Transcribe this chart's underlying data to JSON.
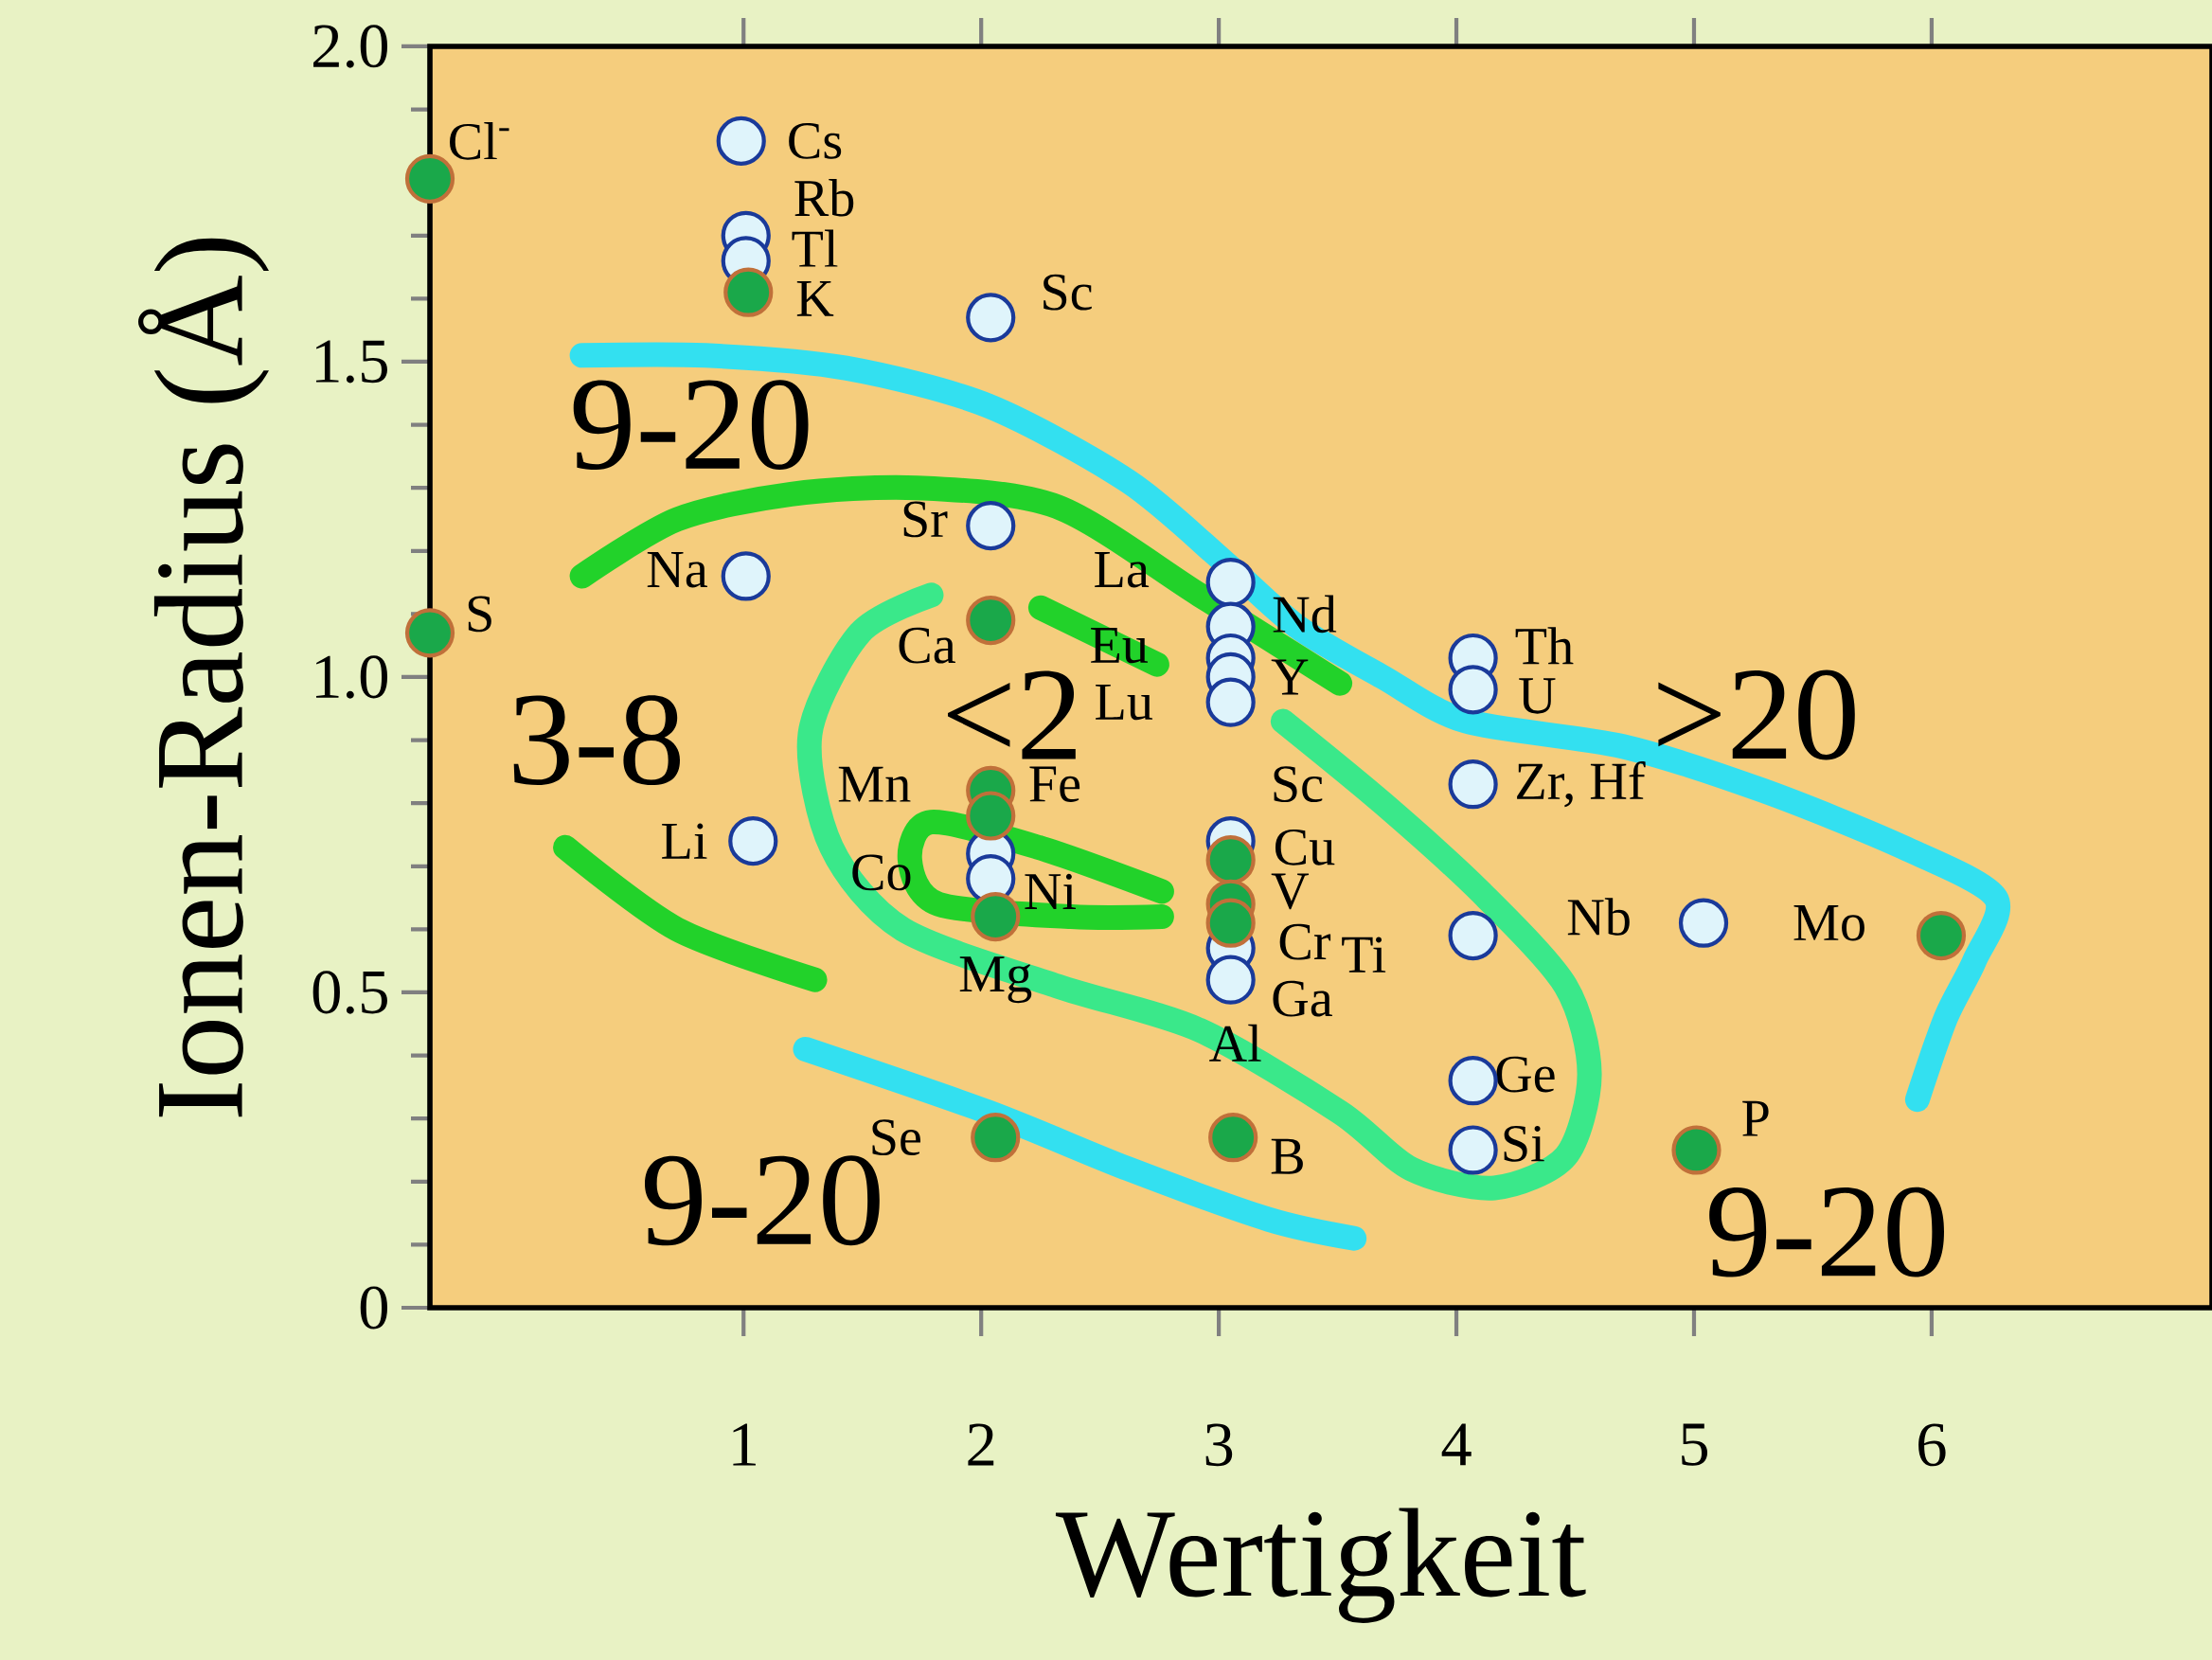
{
  "chart_data": {
    "type": "scatter",
    "xlabel": "Wertigkeit",
    "ylabel": "Ionen-Radius (Å)",
    "xlim": [
      -0.32,
      7.18
    ],
    "ylim": [
      0,
      2.0
    ],
    "xticks": [
      1,
      2,
      3,
      4,
      5,
      6
    ],
    "yticks": [
      0,
      0.5,
      {
        "value": 1,
        "label": "1.0"
      },
      1.5,
      {
        "value": 2,
        "label": "2.0"
      }
    ],
    "grid": false,
    "series": [
      {
        "type": "scatter",
        "marker": "circle",
        "color": "#dff4fb",
        "x": [
          0.99,
          1.01,
          1.01,
          2.04,
          2.04,
          1.01,
          1.04,
          2.04,
          2.04,
          3.05,
          3.05,
          3.05,
          3.05,
          3.05,
          3.05,
          3.05,
          3.05,
          4.07,
          4.07,
          4.07,
          4.07,
          4.07,
          4.07,
          5.04
        ],
        "values": [
          1.85,
          1.7,
          1.66,
          1.57,
          1.24,
          1.16,
          0.74,
          0.72,
          0.68,
          1.15,
          1.08,
          1.03,
          1.0,
          0.96,
          0.74,
          0.57,
          0.52,
          1.03,
          0.98,
          0.83,
          0.59,
          0.36,
          0.25,
          0.61
        ],
        "value_labels": [
          "Cs",
          "Rb",
          "Tl",
          "Sc",
          "Sr",
          "Na",
          "Li",
          "Co",
          "Ni",
          "La",
          "Nd",
          "Eu",
          "Y",
          "Lu",
          "Sc",
          "Ga",
          "Al",
          "Th",
          "U",
          "Zr, Hf",
          "Ti",
          "Ge",
          "Si",
          "Nb"
        ]
      },
      {
        "type": "scatter",
        "marker": "circle",
        "color": "#1aa84a",
        "x": [
          -0.32,
          1.02,
          -0.32,
          2.04,
          2.04,
          2.04,
          2.06,
          2.06,
          3.05,
          3.05,
          3.05,
          3.06,
          5.01,
          6.04
        ],
        "values": [
          1.79,
          1.61,
          1.07,
          1.09,
          0.82,
          0.78,
          0.62,
          0.27,
          0.71,
          0.64,
          0.61,
          0.27,
          0.25,
          0.59
        ],
        "value_labels": [
          "Cl$^{-}$",
          "K",
          "S",
          "Ca",
          "Fe",
          "Mn",
          "Mg",
          "Se",
          "Cu",
          "V",
          "Cr",
          "B",
          "P",
          "Mo"
        ]
      },
      {
        "type": "line",
        "marker": "none",
        "color": "#33e0f0",
        "x": [
          0.32,
          0.84,
          1.43,
          2.03,
          2.62,
          3.03,
          3.33,
          3.69,
          4.04,
          4.7,
          5.29,
          5.88,
          6.27,
          6.18,
          6.06,
          5.94
        ],
        "values": [
          1.51,
          1.51,
          1.49,
          1.43,
          1.31,
          1.18,
          1.08,
          1.0,
          0.93,
          0.89,
          0.82,
          0.73,
          0.65,
          0.55,
          0.46,
          0.33
        ]
      },
      {
        "type": "line",
        "marker": "none",
        "color": "#33e0f0",
        "x": [
          1.26,
          2.03,
          2.62,
          3.21,
          3.57
        ],
        "values": [
          0.41,
          0.31,
          0.22,
          0.14,
          0.11
        ]
      },
      {
        "type": "line",
        "marker": "none",
        "color": "#22d22a",
        "x": [
          0.32,
          0.72,
          1.2,
          1.73,
          2.32,
          2.92,
          3.51
        ],
        "values": [
          1.16,
          1.25,
          1.29,
          1.3,
          1.27,
          1.13,
          0.99
        ]
      },
      {
        "type": "line",
        "marker": "none",
        "color": "#22d22a",
        "x": [
          0.25,
          0.72,
          1.3
        ],
        "values": [
          0.73,
          0.6,
          0.52
        ]
      },
      {
        "type": "line",
        "marker": "none",
        "color": "#22d22a",
        "x": [
          2.25,
          2.74
        ],
        "values": [
          1.11,
          1.02
        ]
      },
      {
        "type": "line",
        "marker": "none",
        "color": "#22d22a",
        "x": [
          2.76,
          2.24,
          1.79,
          1.7,
          1.82,
          2.38,
          2.76
        ],
        "values": [
          0.66,
          0.73,
          0.77,
          0.71,
          0.64,
          0.62,
          0.62
        ]
      },
      {
        "type": "line",
        "marker": "none",
        "color": "#3ae88a",
        "x": [
          1.79,
          1.49,
          1.28,
          1.37,
          1.67,
          2.32,
          2.92,
          3.51,
          3.81,
          4.16,
          4.46,
          4.56,
          4.46,
          4.1,
          3.69,
          3.27
        ],
        "values": [
          1.13,
          1.07,
          0.91,
          0.73,
          0.6,
          0.51,
          0.44,
          0.31,
          0.22,
          0.19,
          0.24,
          0.37,
          0.51,
          0.66,
          0.8,
          0.93
        ]
      }
    ],
    "annotations": [
      "9-20",
      "3-8",
      "<2",
      ">20",
      "9-20",
      "9-20"
    ]
  }
}
